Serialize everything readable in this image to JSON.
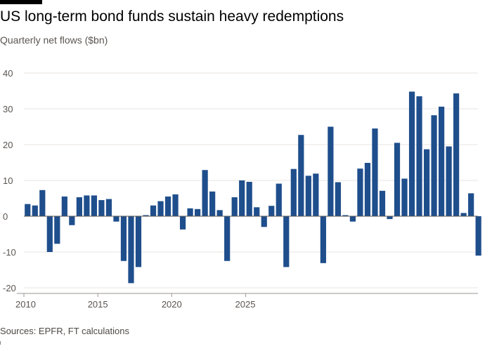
{
  "header": {
    "title": "US long-term bond funds sustain heavy redemptions",
    "subtitle": "Quarterly net flows ($bn)"
  },
  "footer": {
    "source": "Sources: EPFR, FT calculations"
  },
  "chart_data": {
    "type": "bar",
    "title": "US long-term bond funds sustain heavy redemptions",
    "subtitle": "Quarterly net flows ($bn)",
    "xlabel": "",
    "ylabel": "",
    "ylim": [
      -20,
      40
    ],
    "yticks": [
      -20,
      -10,
      0,
      10,
      20,
      30,
      40
    ],
    "xticks": [
      2010,
      2015,
      2020,
      2025
    ],
    "grid": true,
    "bar_color": "#1f4e8c",
    "grid_color": "#e9e6e2",
    "axis_color": "#9a9691",
    "series": [
      {
        "name": "Quarterly net flows",
        "values": [
          3.4,
          3.0,
          7.3,
          -10.0,
          -7.7,
          5.5,
          -2.5,
          5.3,
          5.8,
          5.8,
          4.5,
          4.8,
          -1.5,
          -12.5,
          -18.7,
          -14.2,
          0.3,
          3.0,
          4.2,
          5.5,
          6.1,
          -3.7,
          2.2,
          2.0,
          12.9,
          6.9,
          1.7,
          -12.5,
          5.3,
          10.0,
          9.6,
          2.5,
          -3.0,
          2.9,
          9.1,
          -14.2,
          13.2,
          22.7,
          11.3,
          11.9,
          -13.1,
          25.0,
          9.5,
          0.3,
          -1.5,
          13.3,
          14.9,
          24.5,
          7.1,
          -0.8,
          20.5,
          10.5,
          34.8,
          33.5,
          18.7,
          28.2,
          30.6,
          19.5,
          34.3,
          0.9,
          6.4,
          -11.0
        ]
      }
    ]
  }
}
